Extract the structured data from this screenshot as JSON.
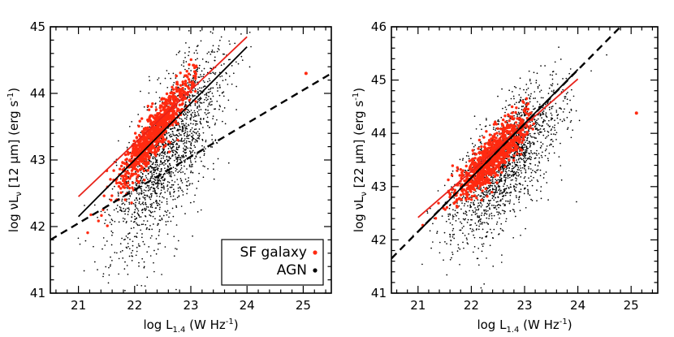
{
  "chart_data": [
    {
      "type": "scatter",
      "panel": "left",
      "xlabel_main": "log L",
      "xlabel_sub": "1.4",
      "xlabel_unit": "(W Hz",
      "xlabel_exp": "-1",
      "xlabel_close": ")",
      "ylabel_pre": "log νL",
      "ylabel_sub": "ν",
      "ylabel_mid": "[12 μm] (erg s",
      "ylabel_exp": "-1",
      "ylabel_close": ")",
      "xlim": [
        20.5,
        25.5
      ],
      "ylim": [
        41,
        45
      ],
      "xticks": [
        "21",
        "22",
        "23",
        "24",
        "25"
      ],
      "yticks": [
        "41",
        "42",
        "43",
        "44",
        "45"
      ],
      "series": [
        {
          "name": "SF galaxy",
          "color": "#ff2a10",
          "kind": "points",
          "n": 900,
          "x_mean": 22.35,
          "x_sd": 0.35,
          "x_min": 21.0,
          "x_max": 23.1,
          "slope": 1.16,
          "intercept": 43.58,
          "scatter": 0.17
        },
        {
          "name": "AGN",
          "color": "#000000",
          "kind": "points",
          "n": 1800,
          "x_mean": 22.6,
          "x_sd": 0.5,
          "x_min": 20.9,
          "x_max": 25.0,
          "slope": 1.1,
          "intercept": 43.15,
          "scatter": 0.45
        }
      ],
      "fits": [
        {
          "name": "SF galaxy fit",
          "color": "#e8231b",
          "style": "solid",
          "x": [
            21.0,
            24.0
          ],
          "y": [
            42.45,
            44.85
          ]
        },
        {
          "name": "AGN fit",
          "color": "#000000",
          "style": "solid",
          "x": [
            21.0,
            24.0
          ],
          "y": [
            42.15,
            44.7
          ]
        },
        {
          "name": "reference",
          "color": "#000000",
          "style": "dashed",
          "x": [
            20.5,
            25.5
          ],
          "y": [
            41.8,
            44.3
          ]
        }
      ],
      "outliers": [
        {
          "x": 25.05,
          "y": 44.3,
          "color": "#ff2a10"
        }
      ],
      "legend": {
        "placement": "bottom-right",
        "entries": [
          {
            "label": "SF galaxy",
            "color": "#ff2a10"
          },
          {
            "label": "AGN",
            "color": "#000000"
          }
        ]
      }
    },
    {
      "type": "scatter",
      "panel": "right",
      "xlabel_main": "log L",
      "xlabel_sub": "1.4",
      "xlabel_unit": "(W Hz",
      "xlabel_exp": "-1",
      "xlabel_close": ")",
      "ylabel_pre": "log νL",
      "ylabel_sub": "ν",
      "ylabel_mid": "[22 μm] (erg s",
      "ylabel_exp": "-1",
      "ylabel_close": ")",
      "xlim": [
        20.5,
        25.5
      ],
      "ylim": [
        41,
        46
      ],
      "xticks": [
        "21",
        "22",
        "23",
        "24",
        "25"
      ],
      "yticks": [
        "41",
        "42",
        "43",
        "44",
        "45",
        "46"
      ],
      "series": [
        {
          "name": "SF galaxy",
          "color": "#ff2a10",
          "kind": "points",
          "n": 900,
          "x_mean": 22.4,
          "x_sd": 0.35,
          "x_min": 20.95,
          "x_max": 23.2,
          "slope": 0.95,
          "intercept": 43.65,
          "scatter": 0.2
        },
        {
          "name": "AGN",
          "color": "#000000",
          "kind": "points",
          "n": 1800,
          "x_mean": 22.65,
          "x_sd": 0.5,
          "x_min": 20.9,
          "x_max": 25.2,
          "slope": 1.0,
          "intercept": 43.45,
          "scatter": 0.45
        }
      ],
      "fits": [
        {
          "name": "SF galaxy fit",
          "color": "#e8231b",
          "style": "solid",
          "x": [
            21.0,
            24.0
          ],
          "y": [
            42.42,
            45.02
          ]
        },
        {
          "name": "AGN fit",
          "color": "#000000",
          "style": "solid",
          "x": [
            21.0,
            24.0
          ],
          "y": [
            42.15,
            45.2
          ]
        },
        {
          "name": "reference",
          "color": "#000000",
          "style": "dashed",
          "x": [
            20.5,
            24.8
          ],
          "y": [
            41.65,
            46.0
          ]
        }
      ],
      "outliers": [
        {
          "x": 25.1,
          "y": 44.38,
          "color": "#ff2a10"
        }
      ],
      "legend": null
    }
  ]
}
